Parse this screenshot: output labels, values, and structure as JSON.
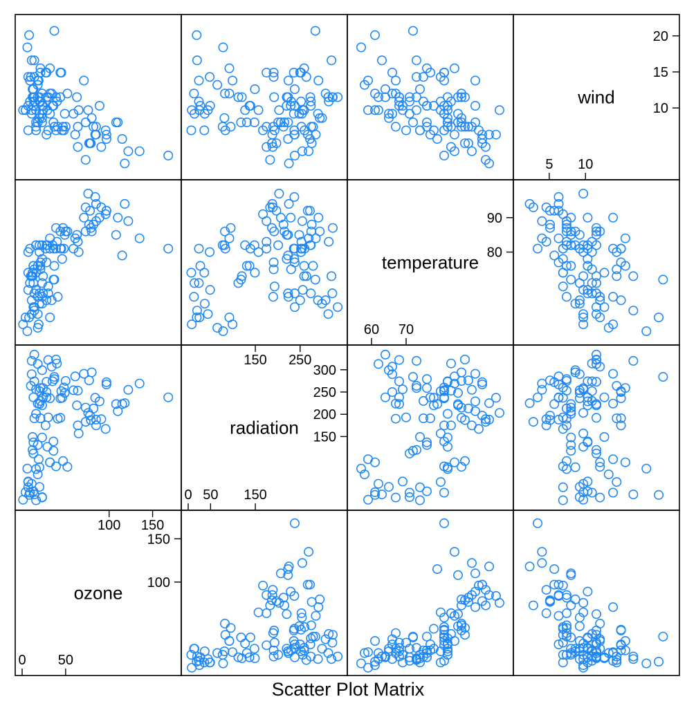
{
  "chart_data": {
    "type": "scatter",
    "subtype": "scatter-plot-matrix",
    "xlabel": "Scatter Plot Matrix",
    "point_color": "#1f88f5",
    "point_style": "open-circle",
    "variables": [
      {
        "name": "ozone",
        "range": [
          0,
          175
        ],
        "ticks": [
          0,
          50,
          100,
          150
        ],
        "tick_labels_lower": [
          "0",
          "50"
        ],
        "tick_labels_upper": [
          "100",
          "150"
        ],
        "scale_labels_top": [
          "100",
          "150"
        ]
      },
      {
        "name": "radiation",
        "range": [
          0,
          340
        ],
        "ticks": [
          0,
          50,
          100,
          150,
          200,
          250,
          300
        ],
        "tick_labels_lower": [
          "0",
          "50",
          "150"
        ],
        "tick_labels_upper": [
          "150",
          "200",
          "250",
          "300"
        ],
        "scale_labels_top": [
          "150",
          "250"
        ]
      },
      {
        "name": "temperature",
        "range": [
          55,
          99
        ],
        "ticks": [
          60,
          70,
          80,
          90
        ],
        "tick_labels_lower": [
          "60",
          "70"
        ],
        "tick_labels_upper": [
          "80",
          "90"
        ]
      },
      {
        "name": "wind",
        "range": [
          1,
          22
        ],
        "ticks": [
          5,
          10,
          15,
          20
        ],
        "tick_labels_lower": [
          "5",
          "10"
        ],
        "tick_labels_upper": [
          "10",
          "15",
          "20"
        ]
      }
    ],
    "columns": [
      "ozone",
      "radiation",
      "temperature",
      "wind"
    ],
    "records": [
      [
        41,
        190,
        67,
        7.4
      ],
      [
        36,
        118,
        72,
        8.0
      ],
      [
        12,
        149,
        74,
        12.6
      ],
      [
        18,
        313,
        62,
        11.5
      ],
      [
        28,
        250,
        66,
        14.9
      ],
      [
        23,
        299,
        65,
        8.6
      ],
      [
        19,
        99,
        59,
        13.8
      ],
      [
        8,
        19,
        61,
        20.1
      ],
      [
        7,
        36,
        74,
        6.9
      ],
      [
        16,
        256,
        69,
        9.7
      ],
      [
        11,
        290,
        66,
        9.2
      ],
      [
        14,
        274,
        68,
        10.9
      ],
      [
        18,
        65,
        58,
        13.2
      ],
      [
        14,
        334,
        64,
        11.5
      ],
      [
        34,
        307,
        66,
        12.0
      ],
      [
        6,
        78,
        57,
        18.4
      ],
      [
        30,
        322,
        68,
        11.5
      ],
      [
        11,
        44,
        62,
        9.7
      ],
      [
        1,
        8,
        59,
        9.7
      ],
      [
        11,
        320,
        73,
        16.6
      ],
      [
        4,
        25,
        61,
        9.7
      ],
      [
        32,
        92,
        61,
        12.0
      ],
      [
        23,
        13,
        67,
        12.0
      ],
      [
        45,
        252,
        81,
        14.9
      ],
      [
        115,
        223,
        79,
        5.7
      ],
      [
        37,
        279,
        76,
        7.4
      ],
      [
        29,
        127,
        82,
        9.7
      ],
      [
        71,
        291,
        90,
        13.8
      ],
      [
        39,
        323,
        87,
        11.5
      ],
      [
        23,
        148,
        82,
        8.0
      ],
      [
        21,
        191,
        77,
        14.9
      ],
      [
        37,
        284,
        72,
        20.7
      ],
      [
        20,
        37,
        65,
        9.2
      ],
      [
        12,
        120,
        73,
        11.5
      ],
      [
        13,
        137,
        76,
        10.3
      ],
      [
        135,
        269,
        84,
        4.0
      ],
      [
        49,
        248,
        85,
        9.2
      ],
      [
        32,
        236,
        81,
        9.2
      ],
      [
        64,
        175,
        83,
        4.6
      ],
      [
        40,
        314,
        83,
        10.9
      ],
      [
        77,
        276,
        88,
        5.1
      ],
      [
        97,
        267,
        92,
        6.3
      ],
      [
        97,
        272,
        92,
        5.7
      ],
      [
        85,
        175,
        89,
        7.4
      ],
      [
        10,
        264,
        73,
        14.3
      ],
      [
        27,
        175,
        81,
        14.9
      ],
      [
        7,
        48,
        80,
        14.3
      ],
      [
        48,
        260,
        81,
        6.9
      ],
      [
        35,
        274,
        82,
        10.3
      ],
      [
        61,
        285,
        84,
        6.3
      ],
      [
        79,
        187,
        87,
        5.1
      ],
      [
        63,
        220,
        85,
        11.5
      ],
      [
        16,
        7,
        74,
        6.9
      ],
      [
        80,
        294,
        86,
        8.6
      ],
      [
        108,
        223,
        85,
        8.0
      ],
      [
        20,
        81,
        82,
        8.6
      ],
      [
        52,
        82,
        86,
        12.0
      ],
      [
        82,
        213,
        88,
        7.4
      ],
      [
        50,
        275,
        86,
        7.4
      ],
      [
        64,
        253,
        83,
        7.4
      ],
      [
        59,
        254,
        81,
        9.2
      ],
      [
        39,
        83,
        81,
        6.9
      ],
      [
        9,
        24,
        81,
        13.8
      ],
      [
        16,
        77,
        82,
        7.4
      ],
      [
        122,
        255,
        89,
        4.0
      ],
      [
        89,
        229,
        90,
        10.3
      ],
      [
        110,
        207,
        90,
        8.0
      ],
      [
        44,
        192,
        86,
        11.5
      ],
      [
        28,
        273,
        82,
        11.5
      ],
      [
        65,
        157,
        80,
        9.7
      ],
      [
        168,
        238,
        81,
        3.4
      ],
      [
        73,
        215,
        86,
        8.0
      ],
      [
        76,
        203,
        97,
        9.7
      ],
      [
        118,
        225,
        94,
        2.3
      ],
      [
        84,
        237,
        96,
        6.3
      ],
      [
        85,
        188,
        94,
        6.3
      ],
      [
        96,
        167,
        91,
        6.9
      ],
      [
        78,
        197,
        92,
        5.1
      ],
      [
        73,
        183,
        93,
        2.8
      ],
      [
        91,
        189,
        93,
        4.6
      ],
      [
        47,
        95,
        87,
        7.4
      ],
      [
        32,
        92,
        84,
        15.5
      ],
      [
        20,
        252,
        80,
        10.9
      ],
      [
        23,
        220,
        78,
        10.3
      ],
      [
        21,
        230,
        75,
        10.9
      ],
      [
        24,
        259,
        73,
        9.7
      ],
      [
        44,
        236,
        81,
        14.9
      ],
      [
        21,
        259,
        76,
        15.5
      ],
      [
        28,
        238,
        77,
        6.3
      ],
      [
        9,
        24,
        71,
        10.9
      ],
      [
        13,
        112,
        71,
        11.5
      ],
      [
        46,
        237,
        78,
        6.9
      ],
      [
        18,
        224,
        67,
        13.8
      ],
      [
        13,
        27,
        76,
        10.3
      ],
      [
        24,
        238,
        68,
        10.3
      ],
      [
        16,
        201,
        82,
        8.0
      ],
      [
        13,
        238,
        64,
        12.6
      ],
      [
        23,
        14,
        71,
        9.2
      ],
      [
        36,
        139,
        81,
        10.3
      ],
      [
        7,
        49,
        69,
        10.3
      ],
      [
        14,
        20,
        63,
        16.6
      ],
      [
        30,
        193,
        70,
        6.9
      ],
      [
        14,
        191,
        75,
        14.3
      ],
      [
        18,
        131,
        76,
        8.0
      ],
      [
        20,
        223,
        68,
        11.5
      ]
    ]
  }
}
